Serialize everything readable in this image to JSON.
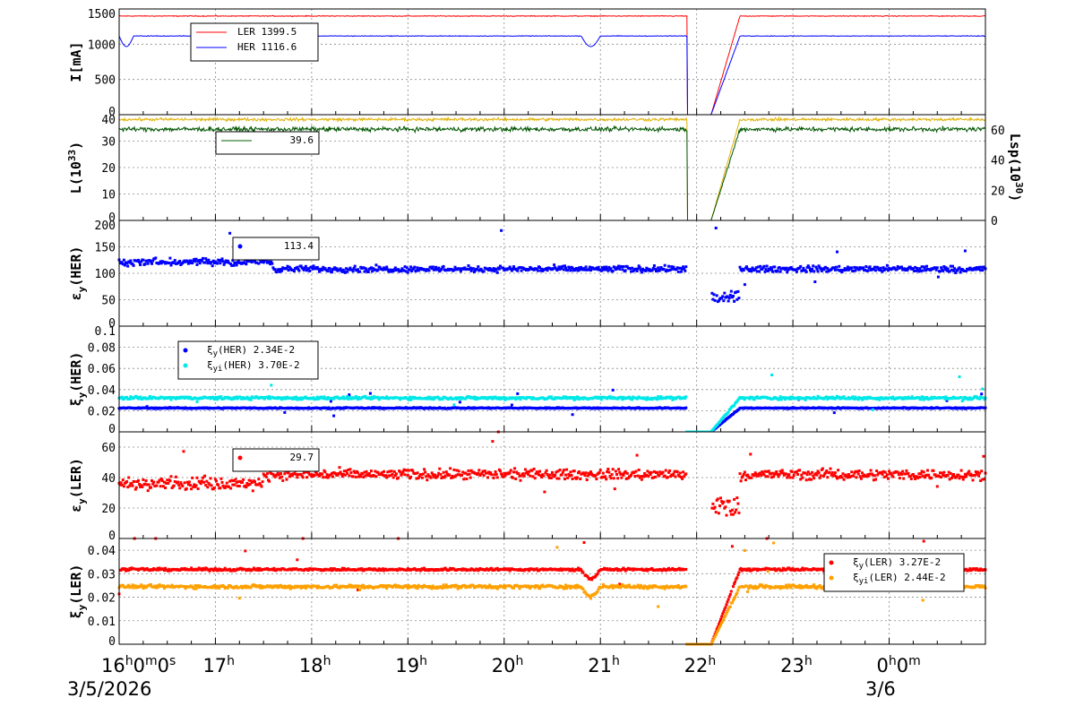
{
  "chart_data": {
    "type": "line",
    "x_labels": [
      "16",
      "17",
      "18",
      "19",
      "20",
      "21",
      "22",
      "23",
      "0"
    ],
    "x_first_suffix": "0m0s",
    "x_midnight_suffix": "0m",
    "date_left": "3/5/2026",
    "date_right": "3/6",
    "panels": [
      {
        "id": "current",
        "ylabel": "I[mA]",
        "ylim": [
          0,
          1500
        ],
        "yticks": [
          "0",
          "500",
          "1000",
          "1500"
        ],
        "legend": [
          {
            "name": "LER",
            "value": "1399.5",
            "color": "#ff0000",
            "marker": "line"
          },
          {
            "name": "HER",
            "value": "1116.6",
            "color": "#0000ff",
            "marker": "line"
          }
        ],
        "series": [
          {
            "name": "LER",
            "color": "#ff0000",
            "style": "line",
            "base": 1399.5,
            "noise": 6
          },
          {
            "name": "HER",
            "color": "#0000ff",
            "style": "line",
            "base": 1116.6,
            "noise": 5
          }
        ]
      },
      {
        "id": "lumi",
        "ylabel": "L(10",
        "ylabel_sup": "33",
        "ylabel_tail": ")",
        "ylim": [
          0,
          40
        ],
        "yticks": [
          "0",
          "10",
          "20",
          "30",
          "40"
        ],
        "ylabel_right": "Lsp(10",
        "ylabel_right_sup": "30",
        "ylabel_right_tail": ")",
        "ylim_right": [
          0,
          70
        ],
        "yticks_right": [
          "0",
          "20",
          "40",
          "60"
        ],
        "legend": [
          {
            "name": "",
            "value": "39.6",
            "color": "#006000",
            "marker": "line"
          }
        ],
        "series": [
          {
            "name": "L",
            "color": "#e0b000",
            "style": "line",
            "base": 38.2,
            "noise": 0.6
          },
          {
            "name": "Lsp",
            "color": "#005500",
            "style": "line",
            "base": 34.5,
            "noise": 0.9
          }
        ]
      },
      {
        "id": "emit_her",
        "ylabel": "ε",
        "ylabel_sub": "y",
        "ylabel_tail": "(HER)",
        "ylim": [
          0,
          200
        ],
        "yticks": [
          "0",
          "50",
          "100",
          "150",
          "200"
        ],
        "legend": [
          {
            "name": "",
            "value": "113.4",
            "color": "#0000ff",
            "marker": "dot"
          }
        ],
        "series": [
          {
            "name": "εy(HER)",
            "color": "#0000ff",
            "style": "dots",
            "base": 108,
            "noise": 6
          }
        ]
      },
      {
        "id": "xi_her",
        "ylabel": "ξ",
        "ylabel_sub": "y",
        "ylabel_tail": "(HER)",
        "ylim": [
          0,
          0.1
        ],
        "yticks": [
          "0",
          "0.02",
          "0.04",
          "0.06",
          "0.08",
          "0.1"
        ],
        "legend": [
          {
            "name": "ξ",
            "sub": "y",
            "tail": "(HER)",
            "value": "2.34E-2",
            "color": "#0000ff",
            "marker": "dot"
          },
          {
            "name": "ξ",
            "sub": "yi",
            "tail": "(HER)",
            "value": "3.70E-2",
            "color": "#00e8e8",
            "marker": "dot"
          }
        ],
        "series": [
          {
            "name": "ξy(HER)",
            "color": "#0000ff",
            "style": "dots",
            "base": 0.0225,
            "noise": 0.0006
          },
          {
            "name": "ξyi(HER)",
            "color": "#00e8e8",
            "style": "dots",
            "base": 0.032,
            "noise": 0.0015
          }
        ]
      },
      {
        "id": "emit_ler",
        "ylabel": "ε",
        "ylabel_sub": "y",
        "ylabel_tail": "(LER)",
        "ylim": [
          0,
          70
        ],
        "yticks": [
          "0",
          "20",
          "40",
          "60"
        ],
        "legend": [
          {
            "name": "",
            "value": "29.7",
            "color": "#ff0000",
            "marker": "dot"
          }
        ],
        "series": [
          {
            "name": "εy(LER)",
            "color": "#ff0000",
            "style": "dots",
            "base": 42,
            "noise": 3.5
          }
        ]
      },
      {
        "id": "xi_ler",
        "ylabel": "ξ",
        "ylabel_sub": "y",
        "ylabel_tail": "(LER)",
        "ylim": [
          0,
          0.045
        ],
        "yticks": [
          "0",
          "0.01",
          "0.02",
          "0.03",
          "0.04"
        ],
        "legend": [
          {
            "name": "ξ",
            "sub": "y",
            "tail": "(LER)",
            "value": "3.27E-2",
            "color": "#ff0000",
            "marker": "dot"
          },
          {
            "name": "ξ",
            "sub": "yi",
            "tail": "(LER)",
            "value": "2.44E-2",
            "color": "#ffa000",
            "marker": "dot"
          }
        ],
        "series": [
          {
            "name": "ξy(LER)",
            "color": "#ff0000",
            "style": "dots",
            "base": 0.0318,
            "noise": 0.0006
          },
          {
            "name": "ξyi(LER)",
            "color": "#ffa000",
            "style": "dots",
            "base": 0.0245,
            "noise": 0.0008
          }
        ]
      }
    ],
    "grid": true,
    "x_range_hours": [
      16,
      25
    ]
  }
}
